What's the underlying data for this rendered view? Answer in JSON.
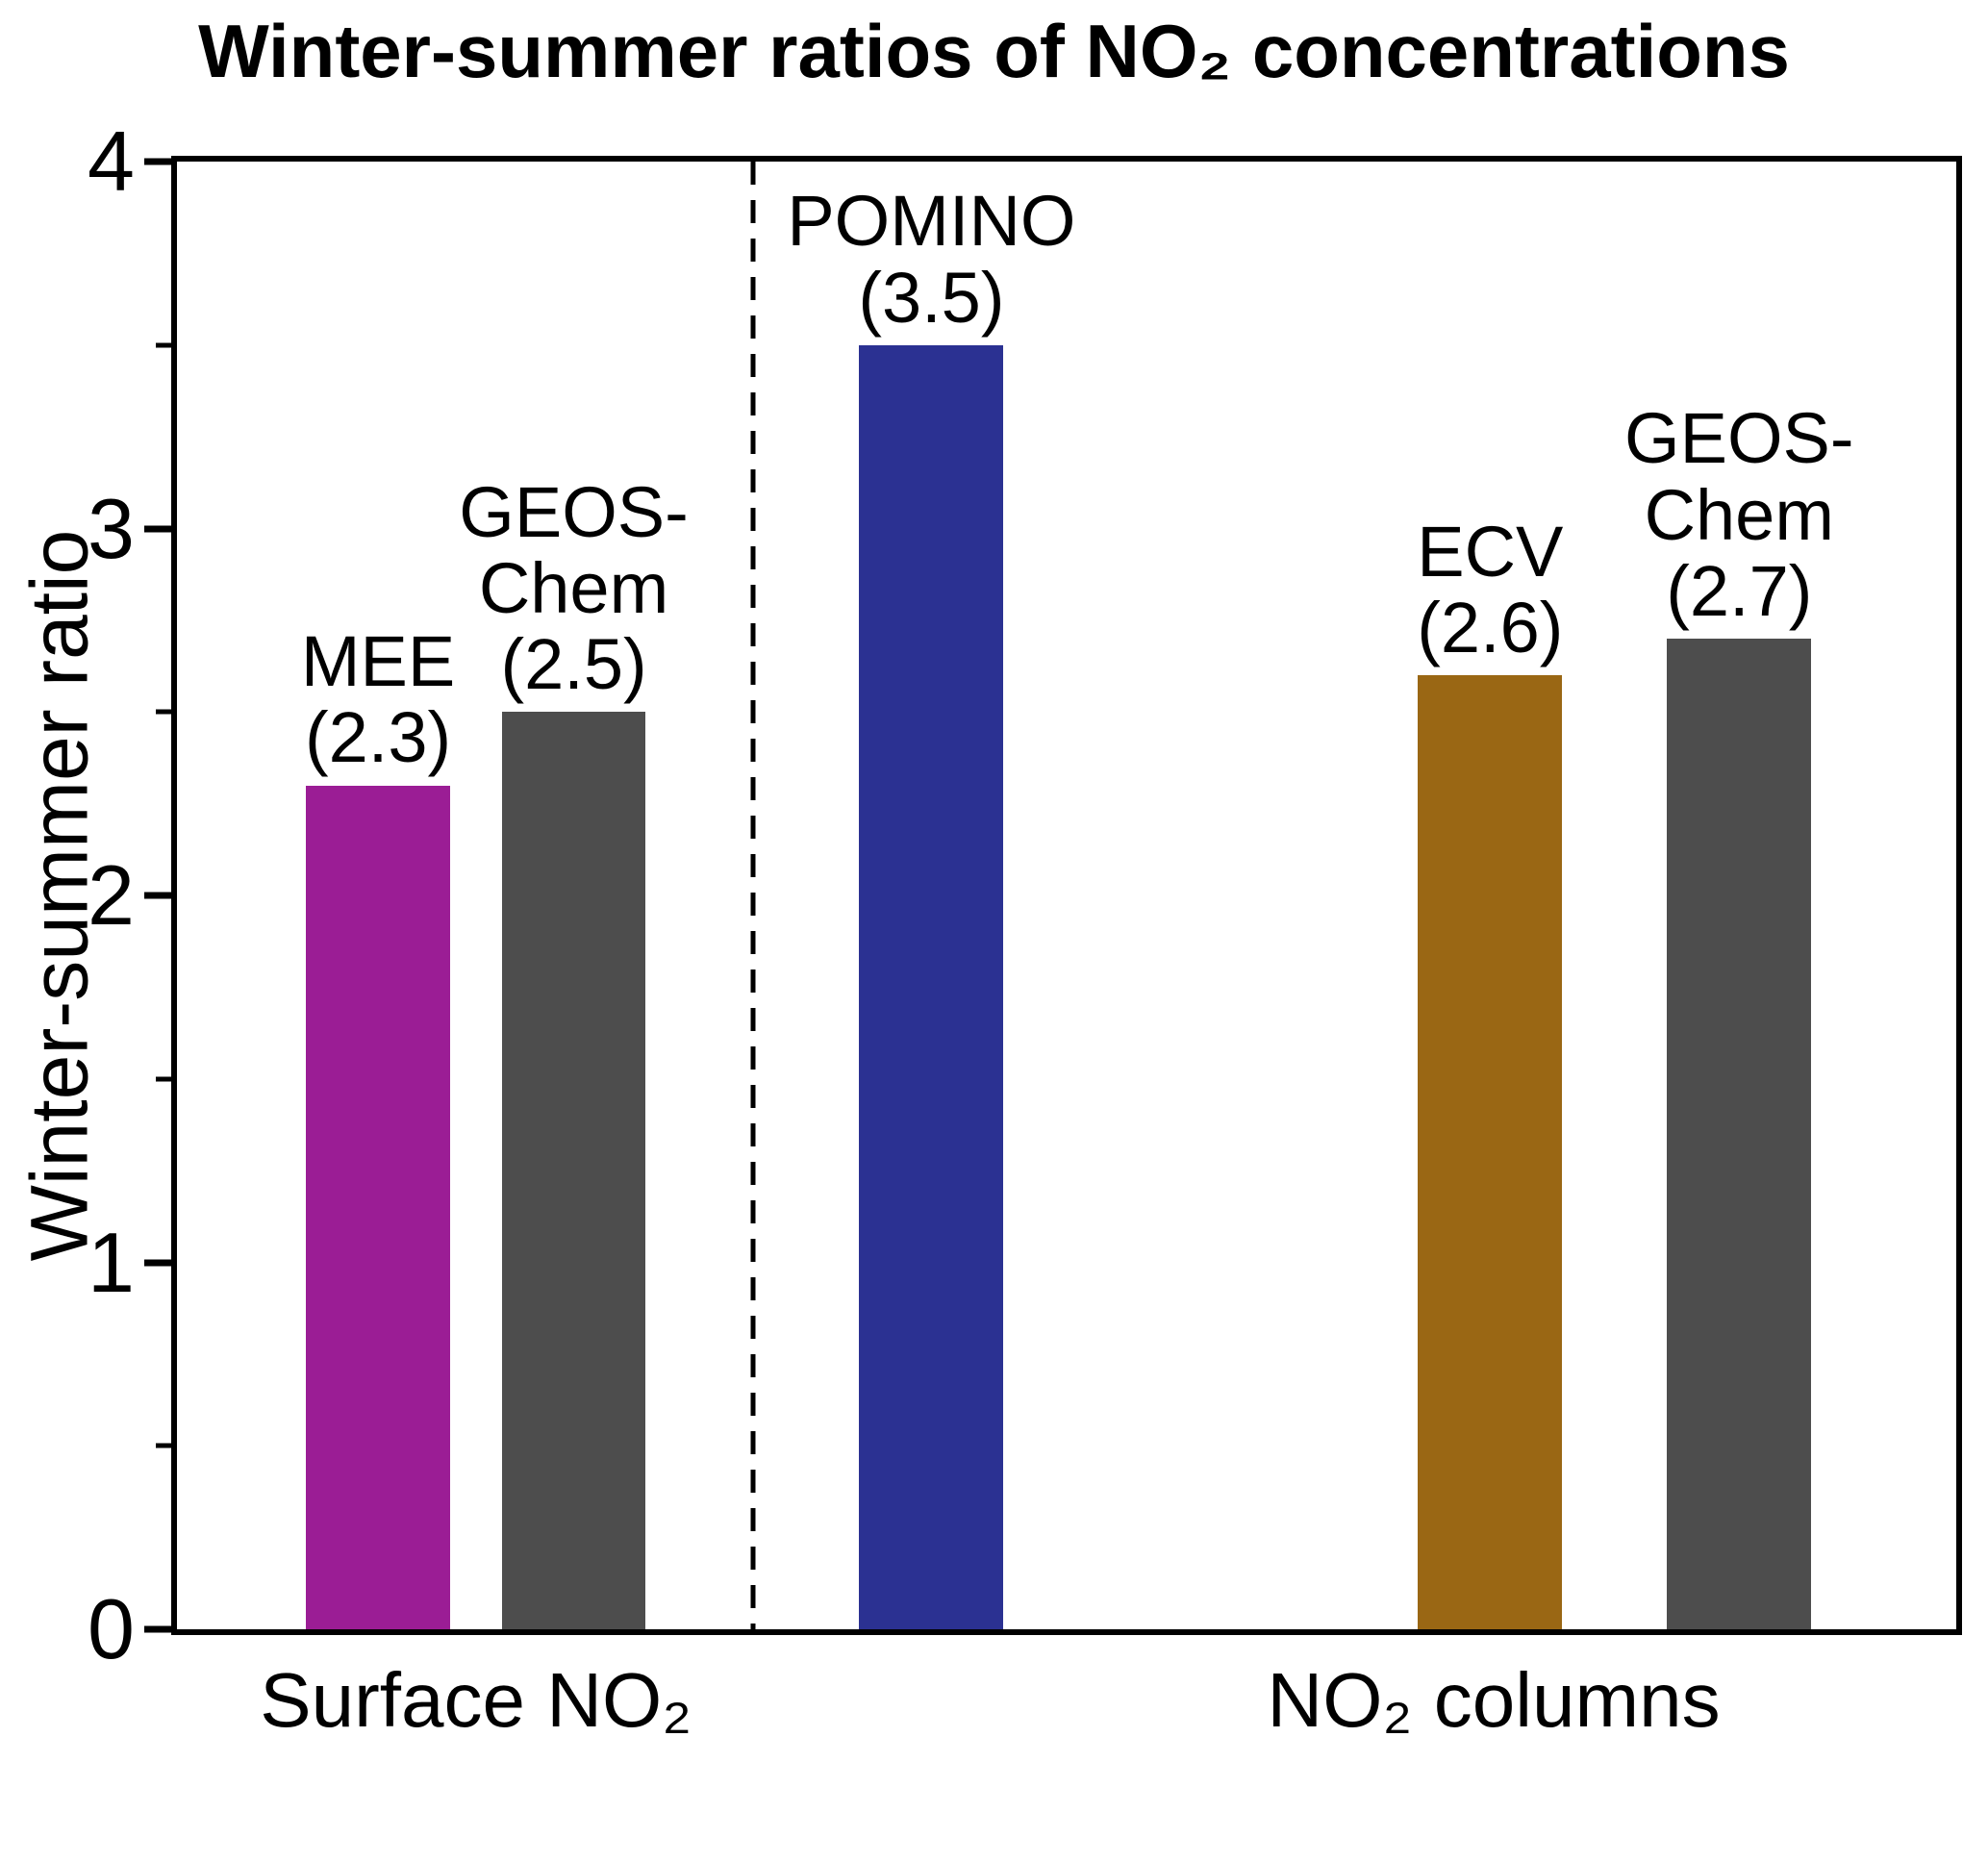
{
  "chart_data": {
    "type": "bar",
    "title": "Winter-summer ratios of NO₂ concentrations",
    "ylabel": "Winter-summer ratio",
    "ylim": [
      0,
      4
    ],
    "yticks_major": [
      0,
      1,
      2,
      3,
      4
    ],
    "yticks_minor": [
      0.5,
      1.5,
      2.5,
      3.5
    ],
    "grid": false,
    "legend": "none",
    "bar_width_pct": 8.1,
    "separator_x_pct": 32.4,
    "bars": [
      {
        "id": "mee",
        "label_lines": [
          "MEE",
          "(2.3)"
        ],
        "value": 2.3,
        "color": "#9B1D95",
        "center_pct": 11.3
      },
      {
        "id": "geos-chem-surface",
        "label_lines": [
          "GEOS-",
          "Chem",
          "(2.5)"
        ],
        "value": 2.5,
        "color": "#4D4D4D",
        "center_pct": 22.3
      },
      {
        "id": "pomino",
        "label_lines": [
          "POMINO",
          "(3.5)"
        ],
        "value": 3.5,
        "color": "#2B3192",
        "center_pct": 42.4
      },
      {
        "id": "ecv",
        "label_lines": [
          "ECV",
          "(2.6)"
        ],
        "value": 2.6,
        "color": "#9A6714",
        "center_pct": 73.8
      },
      {
        "id": "geos-chem-columns",
        "label_lines": [
          "GEOS-",
          "Chem",
          "(2.7)"
        ],
        "value": 2.7,
        "color": "#4D4D4D",
        "center_pct": 87.8
      }
    ],
    "group_labels": [
      {
        "text": "Surface NO₂",
        "center_pct": 16.8
      },
      {
        "text": "NO₂ columns",
        "center_pct": 74.0
      }
    ]
  }
}
